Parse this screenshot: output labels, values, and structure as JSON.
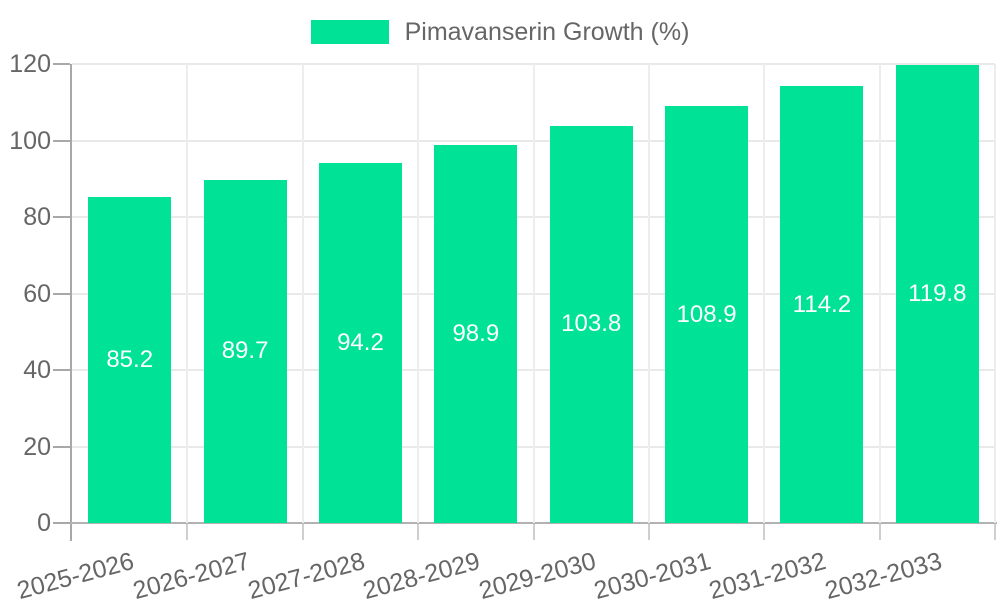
{
  "legend": {
    "label": "Pimavanserin Growth (%)"
  },
  "chart_data": {
    "type": "bar",
    "title": "",
    "categories": [
      "2025-2026",
      "2026-2027",
      "2027-2028",
      "2028-2029",
      "2029-2030",
      "2030-2031",
      "2031-2032",
      "2032-2033"
    ],
    "series": [
      {
        "name": "Pimavanserin Growth (%)",
        "values": [
          85.2,
          89.7,
          94.2,
          98.9,
          103.8,
          108.9,
          114.2,
          119.8
        ]
      }
    ],
    "value_labels": [
      "85.2",
      "89.7",
      "94.2",
      "98.9",
      "103.8",
      "108.9",
      "114.2",
      "119.8"
    ],
    "xlabel": "",
    "ylabel": "",
    "ylim": [
      0,
      120
    ],
    "yticks": [
      0,
      20,
      40,
      60,
      80,
      100,
      120
    ],
    "grid": true,
    "legend_position": "top",
    "bar_color": "#00E396",
    "value_label_color": "#ffffff",
    "axis_text_color": "#666666",
    "gridline_color": "#e9e9e9",
    "gridline_v_color": "#ededed",
    "axis_line_color": "#a8a8a8",
    "x_label_rotation_deg": -15
  }
}
